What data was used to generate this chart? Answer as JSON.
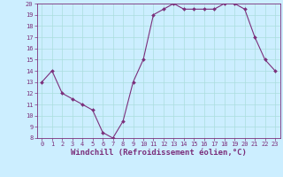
{
  "hours": [
    0,
    1,
    2,
    3,
    4,
    5,
    6,
    7,
    8,
    9,
    10,
    11,
    12,
    13,
    14,
    15,
    16,
    17,
    18,
    19,
    20,
    21,
    22,
    23
  ],
  "values": [
    13,
    14,
    12,
    11.5,
    11,
    10.5,
    8.5,
    8,
    9.5,
    13,
    15,
    19,
    19.5,
    20,
    19.5,
    19.5,
    19.5,
    19.5,
    20,
    20,
    19.5,
    17,
    15,
    14
  ],
  "line_color": "#7b2f7b",
  "marker": "D",
  "marker_size": 2.0,
  "bg_color": "#cceeff",
  "grid_color": "#aadddd",
  "ylim_min": 8,
  "ylim_max": 20,
  "xlim_min": -0.5,
  "xlim_max": 23.5,
  "yticks": [
    8,
    9,
    10,
    11,
    12,
    13,
    14,
    15,
    16,
    17,
    18,
    19,
    20
  ],
  "xticks": [
    0,
    1,
    2,
    3,
    4,
    5,
    6,
    7,
    8,
    9,
    10,
    11,
    12,
    13,
    14,
    15,
    16,
    17,
    18,
    19,
    20,
    21,
    22,
    23
  ],
  "xlabel": "Windchill (Refroidissement éolien,°C)",
  "xlabel_color": "#7b2f7b",
  "tick_color": "#7b2f7b",
  "tick_labelsize": 5.0,
  "xlabel_fontsize": 6.5,
  "linewidth": 0.8
}
